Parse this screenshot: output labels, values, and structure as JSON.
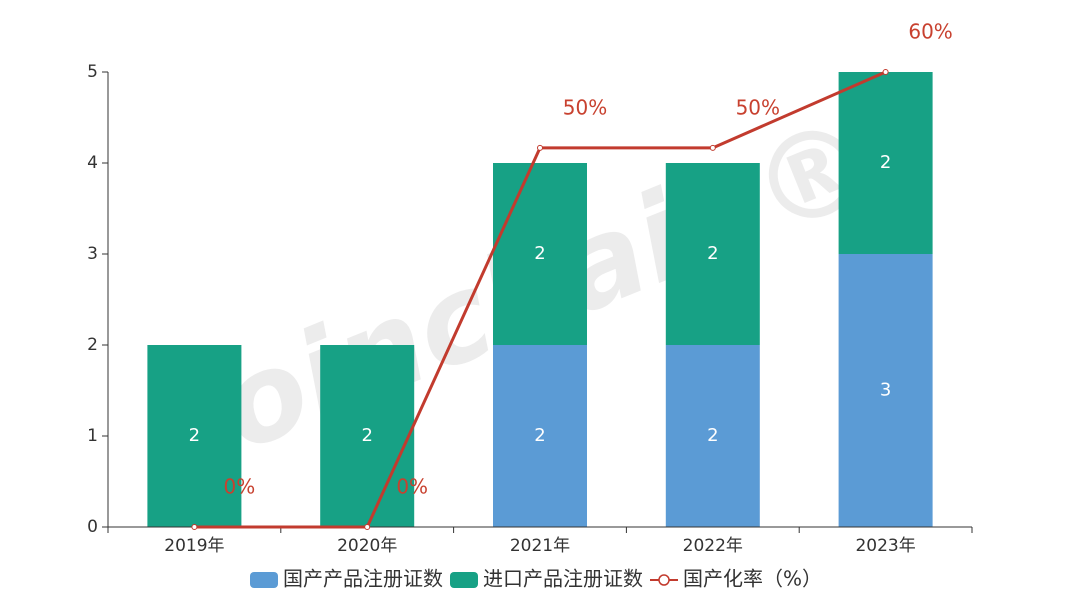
{
  "chart_data": {
    "type": "bar_line",
    "categories": [
      "2019年",
      "2020年",
      "2021年",
      "2022年",
      "2023年"
    ],
    "series": [
      {
        "name": "国产产品注册证数",
        "color": "#5b9bd5",
        "values": [
          0,
          0,
          2,
          2,
          3
        ]
      },
      {
        "name": "进口产品注册证数",
        "color": "#17a185",
        "values": [
          2,
          2,
          2,
          2,
          2
        ]
      },
      {
        "name": "国产化率（%）",
        "color": "#c23b2e",
        "axis": "y2",
        "values": [
          0,
          0,
          50,
          50,
          60
        ],
        "value_labels": [
          "0%",
          "0%",
          "50%",
          "50%",
          "60%"
        ]
      }
    ],
    "ylim": [
      0,
      5
    ],
    "yticks": [
      0,
      1,
      2,
      3,
      4,
      5
    ],
    "y2lim": [
      0,
      60
    ],
    "stacked": true,
    "watermark": "Joinchain®"
  }
}
